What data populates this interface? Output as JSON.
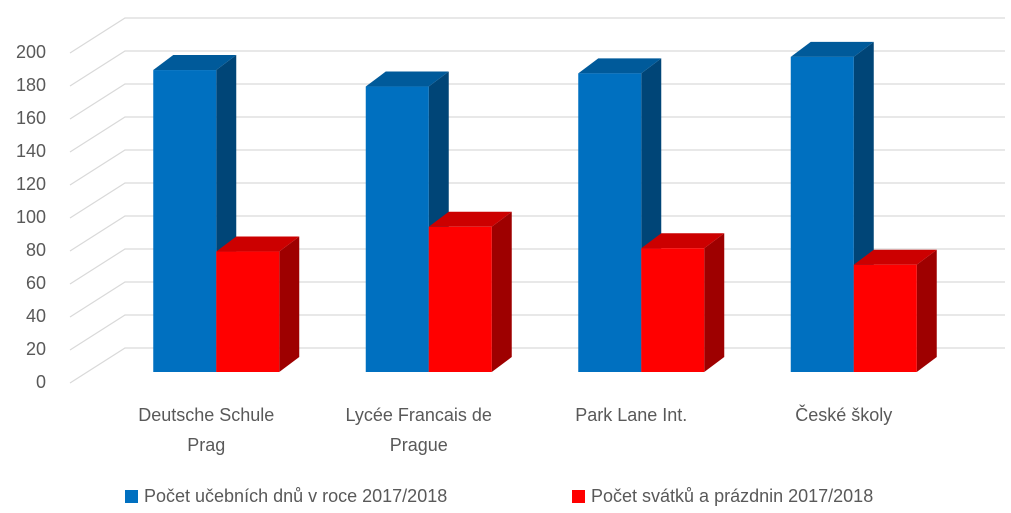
{
  "chart_data": {
    "type": "bar3d",
    "categories": [
      "Deutsche Schule Prag",
      "Lycée Francais de Prague",
      "Park Lane Int.",
      "České školy"
    ],
    "series": [
      {
        "name": "Počet učebních dnů v roce 2017/2018",
        "color": "#0070C0",
        "values": [
          183,
          173,
          181,
          191
        ]
      },
      {
        "name": "Počet svátků a prázdnin 2017/2018",
        "color": "#FF0000",
        "values": [
          73,
          88,
          75,
          65
        ]
      }
    ],
    "ylim": [
      0,
      200
    ],
    "yticks": [
      0,
      20,
      40,
      60,
      80,
      100,
      120,
      140,
      160,
      180,
      200
    ],
    "grid": true,
    "legend": "bottom"
  }
}
